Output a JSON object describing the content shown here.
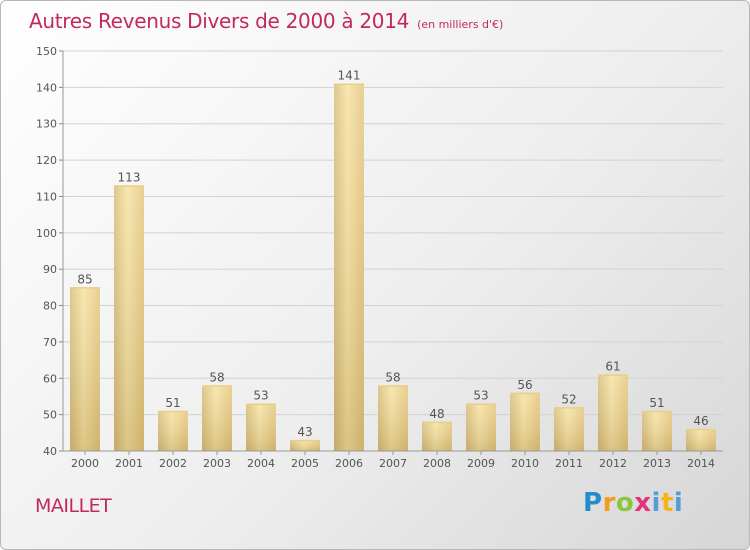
{
  "header": {
    "title": "Autres Revenus Divers de 2000 à 2014",
    "unit": "(en milliers d'€)"
  },
  "footer": {
    "town": "MAILLET",
    "logo": "Proxiti"
  },
  "colors": {
    "title": "#c3285e",
    "bar_light": "#f5df9c",
    "bar_dark": "#c9ac66"
  },
  "chart_data": {
    "type": "bar",
    "title": "Autres Revenus Divers de 2000 à 2014",
    "subtitle": "(en milliers d'€)",
    "xlabel": "",
    "ylabel": "",
    "categories": [
      "2000",
      "2001",
      "2002",
      "2003",
      "2004",
      "2005",
      "2006",
      "2007",
      "2008",
      "2009",
      "2010",
      "2011",
      "2012",
      "2013",
      "2014"
    ],
    "values": [
      85,
      113,
      51,
      58,
      53,
      43,
      141,
      58,
      48,
      53,
      56,
      52,
      61,
      51,
      46
    ],
    "ylim": [
      40,
      150
    ],
    "yticks": [
      40,
      50,
      60,
      70,
      80,
      90,
      100,
      110,
      120,
      130,
      140,
      150
    ],
    "grid": true,
    "data_labels": true
  }
}
